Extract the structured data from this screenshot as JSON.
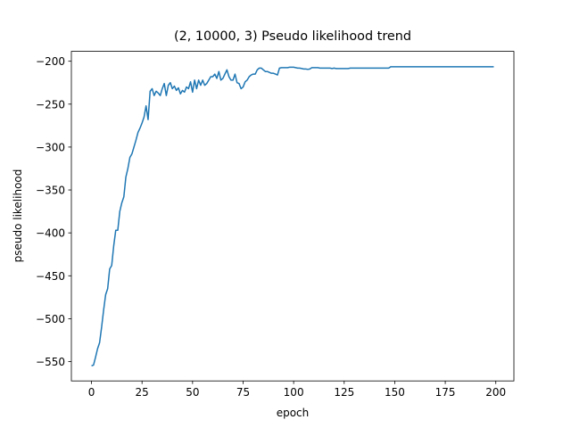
{
  "chart_data": {
    "type": "line",
    "title": "(2, 10000, 3) Pseudo likelihood trend",
    "x_label": "epoch",
    "y_label": "pseudo likelihood",
    "x": [
      0,
      1,
      2,
      3,
      4,
      5,
      6,
      7,
      8,
      9,
      10,
      11,
      12,
      13,
      14,
      15,
      16,
      17,
      18,
      19,
      20,
      21,
      22,
      23,
      24,
      25,
      26,
      27,
      28,
      29,
      30,
      31,
      32,
      33,
      34,
      35,
      36,
      37,
      38,
      39,
      40,
      41,
      42,
      43,
      44,
      45,
      46,
      47,
      48,
      49,
      50,
      51,
      52,
      53,
      54,
      55,
      56,
      57,
      58,
      59,
      60,
      61,
      62,
      63,
      64,
      65,
      66,
      67,
      68,
      69,
      70,
      71,
      72,
      73,
      74,
      75,
      76,
      77,
      78,
      79,
      80,
      81,
      82,
      83,
      84,
      85,
      86,
      87,
      88,
      89,
      90,
      91,
      92,
      93,
      94,
      95,
      96,
      97,
      98,
      99,
      100,
      101,
      102,
      103,
      104,
      105,
      106,
      107,
      108,
      109,
      110,
      111,
      112,
      113,
      114,
      115,
      116,
      117,
      118,
      119,
      120,
      121,
      122,
      123,
      124,
      125,
      126,
      127,
      128,
      129,
      130,
      131,
      132,
      133,
      134,
      135,
      136,
      137,
      138,
      139,
      140,
      141,
      142,
      143,
      144,
      145,
      146,
      147,
      148,
      149,
      150,
      151,
      152,
      153,
      154,
      155,
      156,
      157,
      158,
      159,
      160,
      161,
      162,
      163,
      164,
      165,
      166,
      167,
      168,
      169,
      170,
      171,
      172,
      173,
      174,
      175,
      176,
      177,
      178,
      179,
      180,
      181,
      182,
      183,
      184,
      185,
      186,
      187,
      188,
      189,
      190,
      191,
      192,
      193,
      194,
      195,
      196,
      197,
      198,
      199
    ],
    "series": [
      {
        "name": "pseudo likelihood",
        "color": "#1f77b4",
        "values": [
          -555,
          -554,
          -545,
          -535,
          -528,
          -510,
          -490,
          -472,
          -465,
          -442,
          -438,
          -415,
          -397,
          -397,
          -375,
          -365,
          -358,
          -335,
          -325,
          -312,
          -308,
          -300,
          -292,
          -283,
          -278,
          -272,
          -265,
          -252,
          -268,
          -235,
          -232,
          -240,
          -235,
          -237,
          -240,
          -232,
          -226,
          -240,
          -228,
          -225,
          -232,
          -229,
          -234,
          -231,
          -238,
          -234,
          -236,
          -230,
          -232,
          -224,
          -236,
          -222,
          -232,
          -222,
          -228,
          -222,
          -228,
          -226,
          -222,
          -218,
          -218,
          -215,
          -220,
          -212,
          -222,
          -220,
          -215,
          -210,
          -218,
          -222,
          -222,
          -215,
          -225,
          -226,
          -232,
          -230,
          -224,
          -222,
          -218,
          -216,
          -215,
          -215,
          -210,
          -208,
          -208,
          -210,
          -212,
          -212,
          -213,
          -214,
          -214,
          -215,
          -216,
          -208,
          -207.5,
          -207.5,
          -207.5,
          -207.5,
          -207,
          -207,
          -207,
          -207.5,
          -208,
          -208,
          -208.5,
          -209,
          -209,
          -209.5,
          -209,
          -207.5,
          -207.5,
          -207.5,
          -207.5,
          -208,
          -208,
          -208,
          -208,
          -208,
          -208,
          -208.5,
          -208,
          -208.5,
          -208.5,
          -208.5,
          -208.5,
          -208.5,
          -208.5,
          -208.5,
          -208,
          -208,
          -208,
          -208,
          -208,
          -208,
          -208,
          -208,
          -208,
          -208,
          -208,
          -208,
          -208,
          -208,
          -208,
          -208,
          -208,
          -208,
          -208,
          -208,
          -206.5,
          -206.5,
          -206.5,
          -206.5,
          -206.5,
          -206.5,
          -206.5,
          -206.5,
          -206.5,
          -206.5,
          -206.5,
          -206.5,
          -206.5,
          -206.5,
          -206.5,
          -206.5,
          -206.5,
          -206.5,
          -206.5,
          -206.5,
          -206.5,
          -206.5,
          -206.5,
          -206.5,
          -206.5,
          -206.5,
          -206.5,
          -206.5,
          -206.5,
          -206.5,
          -206.5,
          -206.5,
          -206.5,
          -206.5,
          -206.5,
          -206.5,
          -206.5,
          -206.5,
          -206.5,
          -206.5,
          -206.5,
          -206.5,
          -206.5,
          -206.5,
          -206.5,
          -206.5,
          -206.5,
          -206.5,
          -206.5,
          -206.5,
          -206.5,
          -206.5
        ]
      }
    ],
    "xlim": [
      -9.95,
      208.95
    ],
    "ylim": [
      -572.5,
      -188.5
    ],
    "xticks": [
      0,
      25,
      50,
      75,
      100,
      125,
      150,
      175,
      200
    ],
    "yticks": [
      {
        "value": -550,
        "label": "−550"
      },
      {
        "value": -500,
        "label": "−500"
      },
      {
        "value": -450,
        "label": "−450"
      },
      {
        "value": -400,
        "label": "−400"
      },
      {
        "value": -350,
        "label": "−350"
      },
      {
        "value": -300,
        "label": "−300"
      },
      {
        "value": -250,
        "label": "−250"
      },
      {
        "value": -200,
        "label": "−200"
      }
    ],
    "grid": false
  }
}
